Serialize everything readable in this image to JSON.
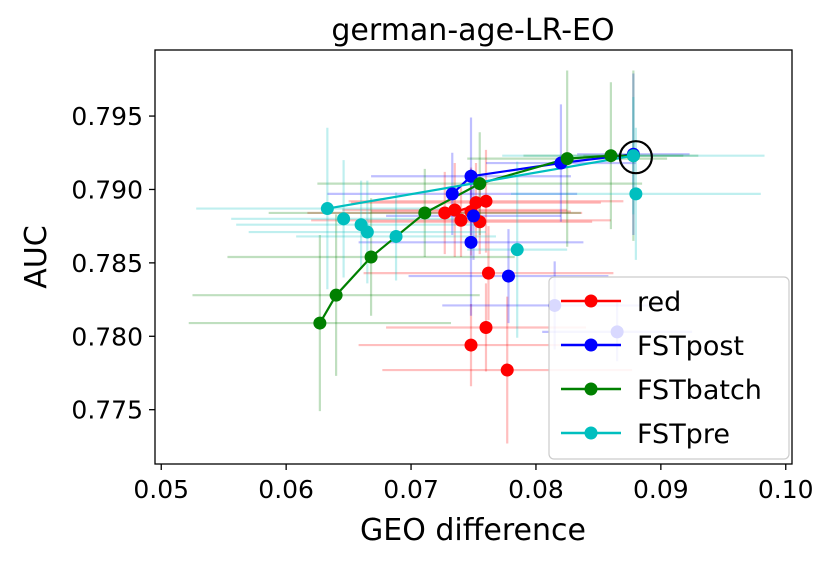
{
  "chart_data": {
    "type": "scatter",
    "title": "german-age-LR-EO",
    "xlabel": "GEO difference",
    "ylabel": "AUC",
    "xlim": [
      0.0495,
      0.1005
    ],
    "ylim": [
      0.7713,
      0.7995
    ],
    "x_ticks": [
      0.05,
      0.06,
      0.07,
      0.08,
      0.09,
      0.1
    ],
    "x_tick_labels": [
      "0.05",
      "0.06",
      "0.07",
      "0.08",
      "0.09",
      "0.10"
    ],
    "y_ticks": [
      0.775,
      0.78,
      0.785,
      0.79,
      0.795
    ],
    "y_tick_labels": [
      "0.775",
      "0.780",
      "0.785",
      "0.790",
      "0.795"
    ],
    "grid": false,
    "legend_position": "lower-right",
    "highlight": {
      "x": 0.088,
      "y": 0.7922,
      "marker": "circle"
    },
    "series": [
      {
        "name": "red",
        "color": "#ff0000",
        "line_points": [
          [
            0.0727,
            0.7884
          ],
          [
            0.074,
            0.7886
          ],
          [
            0.0755,
            0.789
          ]
        ],
        "points": [
          {
            "x": 0.0727,
            "y": 0.7884,
            "xerr": 0.011,
            "yerr": 0.0028
          },
          {
            "x": 0.0735,
            "y": 0.7886,
            "xerr": 0.009,
            "yerr": 0.0032
          },
          {
            "x": 0.074,
            "y": 0.7879,
            "xerr": 0.012,
            "yerr": 0.0025
          },
          {
            "x": 0.0748,
            "y": 0.7885,
            "xerr": 0.008,
            "yerr": 0.003
          },
          {
            "x": 0.0752,
            "y": 0.7891,
            "xerr": 0.01,
            "yerr": 0.0027
          },
          {
            "x": 0.0755,
            "y": 0.7878,
            "xerr": 0.009,
            "yerr": 0.0022
          },
          {
            "x": 0.076,
            "y": 0.7892,
            "xerr": 0.011,
            "yerr": 0.0035
          },
          {
            "x": 0.0762,
            "y": 0.7843,
            "xerr": 0.01,
            "yerr": 0.0032
          },
          {
            "x": 0.076,
            "y": 0.7806,
            "xerr": 0.008,
            "yerr": 0.003
          },
          {
            "x": 0.0748,
            "y": 0.7794,
            "xerr": 0.009,
            "yerr": 0.0028
          },
          {
            "x": 0.0777,
            "y": 0.7777,
            "xerr": 0.01,
            "yerr": 0.005
          }
        ]
      },
      {
        "name": "FSTpost",
        "color": "#0000ff",
        "line_points": [
          [
            0.0733,
            0.7897
          ],
          [
            0.0748,
            0.7909
          ],
          [
            0.082,
            0.7918
          ],
          [
            0.0878,
            0.7924
          ]
        ],
        "points": [
          {
            "x": 0.0733,
            "y": 0.7897,
            "xerr": 0.01,
            "yerr": 0.0028
          },
          {
            "x": 0.0748,
            "y": 0.7909,
            "xerr": 0.008,
            "yerr": 0.004
          },
          {
            "x": 0.0748,
            "y": 0.7864,
            "xerr": 0.009,
            "yerr": 0.005
          },
          {
            "x": 0.075,
            "y": 0.7882,
            "xerr": 0.007,
            "yerr": 0.003
          },
          {
            "x": 0.0778,
            "y": 0.7841,
            "xerr": 0.008,
            "yerr": 0.0032
          },
          {
            "x": 0.0815,
            "y": 0.7821,
            "xerr": 0.009,
            "yerr": 0.003
          },
          {
            "x": 0.082,
            "y": 0.7918,
            "xerr": 0.006,
            "yerr": 0.004
          },
          {
            "x": 0.0878,
            "y": 0.7924,
            "xerr": 0.0045,
            "yerr": 0.0055
          },
          {
            "x": 0.0865,
            "y": 0.7803,
            "xerr": 0.006,
            "yerr": 0.002
          }
        ]
      },
      {
        "name": "FSTbatch",
        "color": "#008000",
        "line_points": [
          [
            0.0627,
            0.7809
          ],
          [
            0.064,
            0.7828
          ],
          [
            0.0668,
            0.7854
          ],
          [
            0.0711,
            0.7884
          ],
          [
            0.0755,
            0.7904
          ],
          [
            0.0825,
            0.7921
          ],
          [
            0.086,
            0.7923
          ],
          [
            0.0878,
            0.7923
          ]
        ],
        "points": [
          {
            "x": 0.0627,
            "y": 0.7809,
            "xerr": 0.0105,
            "yerr": 0.006
          },
          {
            "x": 0.064,
            "y": 0.7828,
            "xerr": 0.0115,
            "yerr": 0.0055
          },
          {
            "x": 0.0668,
            "y": 0.7854,
            "xerr": 0.0115,
            "yerr": 0.004
          },
          {
            "x": 0.0711,
            "y": 0.7884,
            "xerr": 0.0125,
            "yerr": 0.003
          },
          {
            "x": 0.0755,
            "y": 0.7904,
            "xerr": 0.013,
            "yerr": 0.0035
          },
          {
            "x": 0.0825,
            "y": 0.7921,
            "xerr": 0.008,
            "yerr": 0.006
          },
          {
            "x": 0.086,
            "y": 0.7923,
            "xerr": 0.007,
            "yerr": 0.005
          },
          {
            "x": 0.0878,
            "y": 0.7923,
            "xerr": 0.004,
            "yerr": 0.0058
          }
        ]
      },
      {
        "name": "FSTpre",
        "color": "#00bfbf",
        "line_points": [
          [
            0.0633,
            0.7887
          ],
          [
            0.0878,
            0.7923
          ]
        ],
        "points": [
          {
            "x": 0.0633,
            "y": 0.7887,
            "xerr": 0.0105,
            "yerr": 0.0055
          },
          {
            "x": 0.0646,
            "y": 0.788,
            "xerr": 0.009,
            "yerr": 0.004
          },
          {
            "x": 0.066,
            "y": 0.7876,
            "xerr": 0.01,
            "yerr": 0.003
          },
          {
            "x": 0.0665,
            "y": 0.7871,
            "xerr": 0.0095,
            "yerr": 0.0035
          },
          {
            "x": 0.0688,
            "y": 0.7868,
            "xerr": 0.008,
            "yerr": 0.003
          },
          {
            "x": 0.0785,
            "y": 0.7859,
            "xerr": 0.004,
            "yerr": 0.006
          },
          {
            "x": 0.0878,
            "y": 0.7923,
            "xerr": 0.0105,
            "yerr": 0.004
          },
          {
            "x": 0.088,
            "y": 0.7897,
            "xerr": 0.01,
            "yerr": 0.0045
          }
        ]
      }
    ]
  }
}
